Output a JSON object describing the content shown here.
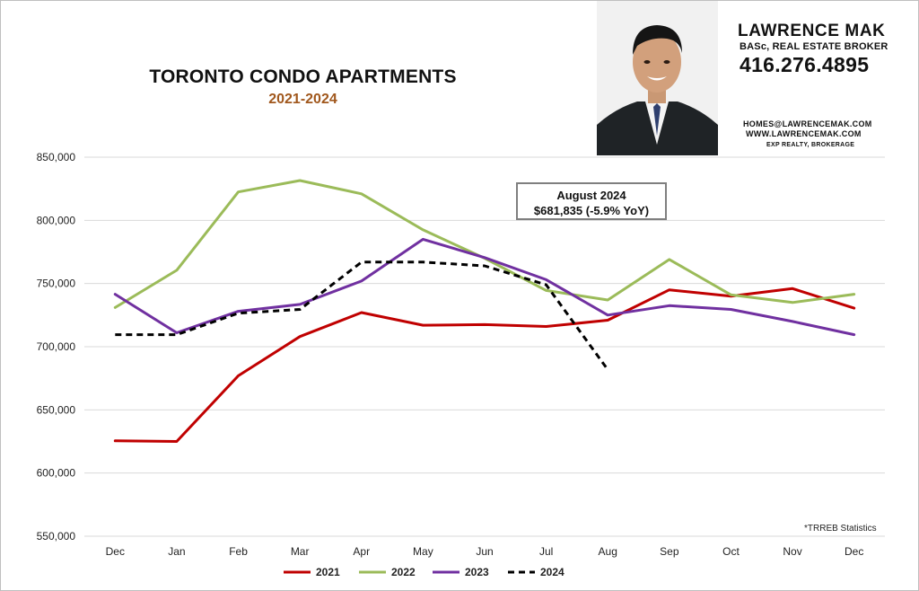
{
  "header": {
    "title": "TORONTO CONDO APARTMENTS",
    "subtitle": "2021-2024"
  },
  "agent_card": {
    "name": "LAWRENCE MAK",
    "credentials": "BASc, REAL ESTATE BROKER",
    "phone": "416.276.4895",
    "email": "HOMES@LAWRENCEMAK.COM",
    "website": "WWW.LAWRENCEMAK.COM",
    "brokerage": "EXP REALTY, BROKERAGE"
  },
  "annotation": {
    "line1": "August 2024",
    "line2": "$681,835 (-5.9% YoY)"
  },
  "source_note": "*TRREB Statistics",
  "colors": {
    "2021": "#c00000",
    "2022": "#9bbb59",
    "2023": "#7030a0",
    "2024": "#000000",
    "grid": "#d9d9d9"
  },
  "chart_data": {
    "type": "line",
    "title": "TORONTO CONDO APARTMENTS",
    "subtitle": "2021-2024",
    "xlabel": "",
    "ylabel": "",
    "categories": [
      "Dec",
      "Jan",
      "Feb",
      "Mar",
      "Apr",
      "May",
      "Jun",
      "Jul",
      "Aug",
      "Sep",
      "Oct",
      "Nov",
      "Dec"
    ],
    "ylim": [
      550000,
      850000
    ],
    "yticks": [
      550000,
      600000,
      650000,
      700000,
      750000,
      800000,
      850000
    ],
    "ytick_labels": [
      "550,000",
      "600,000",
      "650,000",
      "700,000",
      "750,000",
      "800,000",
      "850,000"
    ],
    "grid": true,
    "legend_position": "bottom",
    "series": [
      {
        "name": "2021",
        "color": "#c00000",
        "dashed": false,
        "values": [
          625500,
          625000,
          677000,
          708000,
          727000,
          717000,
          717500,
          716000,
          721000,
          745000,
          740000,
          746000,
          730500
        ]
      },
      {
        "name": "2022",
        "color": "#9bbb59",
        "dashed": false,
        "values": [
          731000,
          760500,
          822500,
          831500,
          821000,
          792500,
          770000,
          744500,
          737000,
          769000,
          741000,
          735000,
          741500
        ]
      },
      {
        "name": "2023",
        "color": "#7030a0",
        "dashed": false,
        "values": [
          741500,
          711000,
          728000,
          733500,
          752000,
          785000,
          770500,
          753000,
          725000,
          732500,
          729500,
          720000,
          709500
        ]
      },
      {
        "name": "2024",
        "color": "#000000",
        "dashed": true,
        "values": [
          709500,
          709500,
          726500,
          729500,
          767000,
          767000,
          764000,
          749000,
          681835,
          null,
          null,
          null,
          null
        ]
      }
    ]
  }
}
